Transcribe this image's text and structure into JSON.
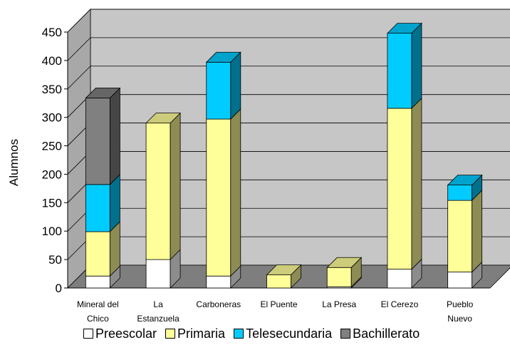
{
  "chart_data": {
    "type": "bar",
    "stacked": true,
    "three_d": true,
    "title": "",
    "xlabel": "",
    "ylabel": "Alumnos",
    "ylim": [
      0,
      450
    ],
    "yticks": [
      0,
      50,
      100,
      150,
      200,
      250,
      300,
      350,
      400,
      450
    ],
    "grid": true,
    "legend_position": "bottom",
    "categories": [
      [
        "Mineral del",
        "Chico"
      ],
      [
        "La",
        "Estanzuela"
      ],
      [
        "Carboneras"
      ],
      [
        "El Puente"
      ],
      [
        "La Presa"
      ],
      [
        "El Cerezo"
      ],
      [
        "Pueblo",
        "Nuevo"
      ]
    ],
    "series": [
      {
        "name": "Preescolar",
        "color": "#ffffff",
        "values": [
          21,
          50,
          21,
          0,
          2,
          33,
          28
        ]
      },
      {
        "name": "Primaria",
        "color": "#ffff99",
        "values": [
          78,
          240,
          276,
          23,
          34,
          283,
          126
        ]
      },
      {
        "name": "Telesecundaria",
        "color": "#00ccff",
        "values": [
          83,
          0,
          100,
          0,
          0,
          132,
          27
        ]
      },
      {
        "name": "Bachillerato",
        "color": "#808080",
        "values": [
          152,
          0,
          0,
          0,
          0,
          0,
          0
        ]
      }
    ]
  }
}
